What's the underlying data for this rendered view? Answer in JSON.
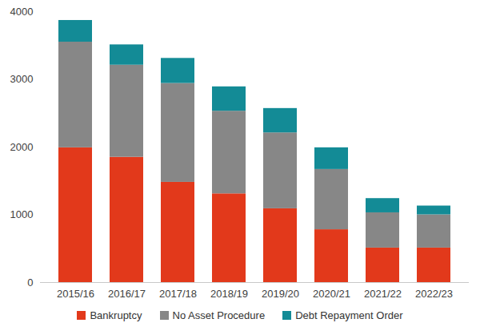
{
  "chart_data": {
    "type": "bar",
    "stacked": true,
    "grid": false,
    "legend": "bottom",
    "categories": [
      "2015/16",
      "2016/17",
      "2017/18",
      "2018/19",
      "2019/20",
      "2020/21",
      "2021/22",
      "2022/23"
    ],
    "series": [
      {
        "name": "Bankruptcy",
        "color": "#e2391b",
        "values": [
          1990,
          1850,
          1480,
          1310,
          1090,
          780,
          510,
          510
        ]
      },
      {
        "name": "No Asset Procedure",
        "color": "#878787",
        "values": [
          1560,
          1360,
          1460,
          1220,
          1120,
          890,
          520,
          490
        ]
      },
      {
        "name": "Debt Repayment Order",
        "color": "#138b96",
        "values": [
          320,
          300,
          370,
          360,
          360,
          320,
          210,
          130
        ]
      }
    ],
    "ylim": [
      0,
      4000
    ],
    "yticks": [
      0,
      1000,
      2000,
      3000,
      4000
    ]
  }
}
